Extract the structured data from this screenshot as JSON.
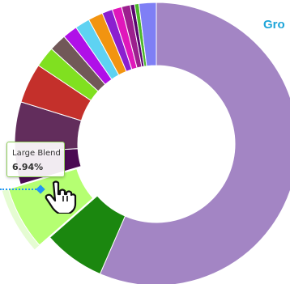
{
  "chart_data": {
    "type": "pie",
    "style": "donut",
    "legend_title": "Gro",
    "slices": [
      {
        "value": 57.06,
        "color": "#a385c4"
      },
      {
        "value": 7.1,
        "color": "#1b870f"
      },
      {
        "value": 6.94,
        "color": "#a8f56a",
        "label": "Large Blend",
        "value_label": "6.94%"
      },
      {
        "value": 3.7,
        "color": "#4b0a52"
      },
      {
        "value": 5.8,
        "color": "#622d5c"
      },
      {
        "value": 4.6,
        "color": "#c4302b"
      },
      {
        "value": 2.4,
        "color": "#80e020"
      },
      {
        "value": 2.0,
        "color": "#715858"
      },
      {
        "value": 1.7,
        "color": "#b010e8"
      },
      {
        "value": 1.7,
        "color": "#5ed2f2"
      },
      {
        "value": 1.7,
        "color": "#f29410"
      },
      {
        "value": 1.2,
        "color": "#8b1fd0"
      },
      {
        "value": 1.1,
        "color": "#e017bb"
      },
      {
        "value": 1.0,
        "color": "#9c1f8e"
      },
      {
        "value": 0.5,
        "color": "#5a0670"
      },
      {
        "value": 0.5,
        "color": "#4cb82b"
      },
      {
        "value": 1.99,
        "color": "#7f7ff5"
      }
    ],
    "hovered_index": 2
  },
  "tooltip": {
    "name": "Large Blend",
    "value": "6.94%"
  },
  "icons": {
    "cursor": "hand-pointer-icon"
  }
}
